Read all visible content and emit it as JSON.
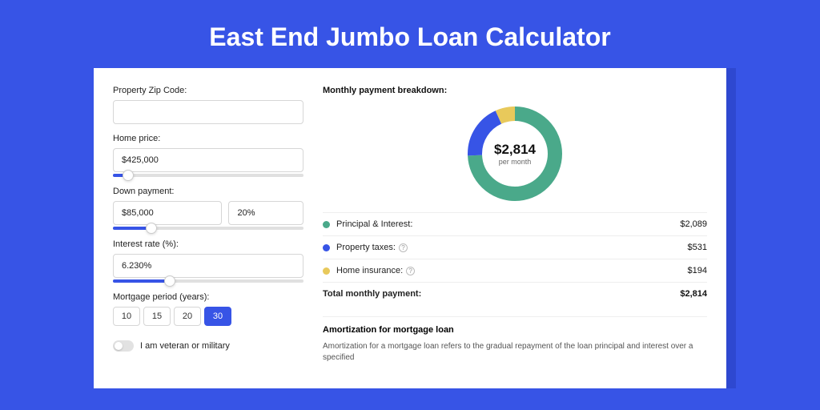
{
  "title": "East End Jumbo Loan Calculator",
  "colors": {
    "page_bg": "#3754e6",
    "page_shadow": "#2e48d0",
    "panel_bg": "#ffffff",
    "accent": "#3754e6",
    "text": "#222222",
    "muted": "#666666",
    "border": "#d6d6d6"
  },
  "left": {
    "zip_label": "Property Zip Code:",
    "zip_value": "",
    "home_price_label": "Home price:",
    "home_price_value": "$425,000",
    "home_price_slider": {
      "fill_pct": 8,
      "thumb_pct": 8
    },
    "down_payment_label": "Down payment:",
    "down_payment_value": "$85,000",
    "down_payment_pct": "20%",
    "down_payment_slider": {
      "fill_pct": 20,
      "thumb_pct": 20
    },
    "interest_label": "Interest rate (%):",
    "interest_value": "6.230%",
    "interest_slider": {
      "fill_pct": 30,
      "thumb_pct": 30
    },
    "period_label": "Mortgage period (years):",
    "period_options": [
      {
        "label": "10",
        "active": false
      },
      {
        "label": "15",
        "active": false
      },
      {
        "label": "20",
        "active": false
      },
      {
        "label": "30",
        "active": true
      }
    ],
    "veteran_label": "I am veteran or military",
    "veteran_on": false
  },
  "right": {
    "breakdown_title": "Monthly payment breakdown:",
    "donut": {
      "center_amount": "$2,814",
      "center_sub": "per month",
      "size": 118,
      "stroke_width": 18,
      "slices": [
        {
          "label": "Principal & Interest",
          "value": 2089,
          "color": "#4aa98a"
        },
        {
          "label": "Property taxes",
          "value": 531,
          "color": "#3754e6"
        },
        {
          "label": "Home insurance",
          "value": 194,
          "color": "#e8c95b"
        }
      ]
    },
    "rows": [
      {
        "dot": "#4aa98a",
        "label": "Principal & Interest:",
        "info": false,
        "value": "$2,089"
      },
      {
        "dot": "#3754e6",
        "label": "Property taxes:",
        "info": true,
        "value": "$531"
      },
      {
        "dot": "#e8c95b",
        "label": "Home insurance:",
        "info": true,
        "value": "$194"
      }
    ],
    "total_label": "Total monthly payment:",
    "total_value": "$2,814",
    "amort_title": "Amortization for mortgage loan",
    "amort_text": "Amortization for a mortgage loan refers to the gradual repayment of the loan principal and interest over a specified"
  }
}
